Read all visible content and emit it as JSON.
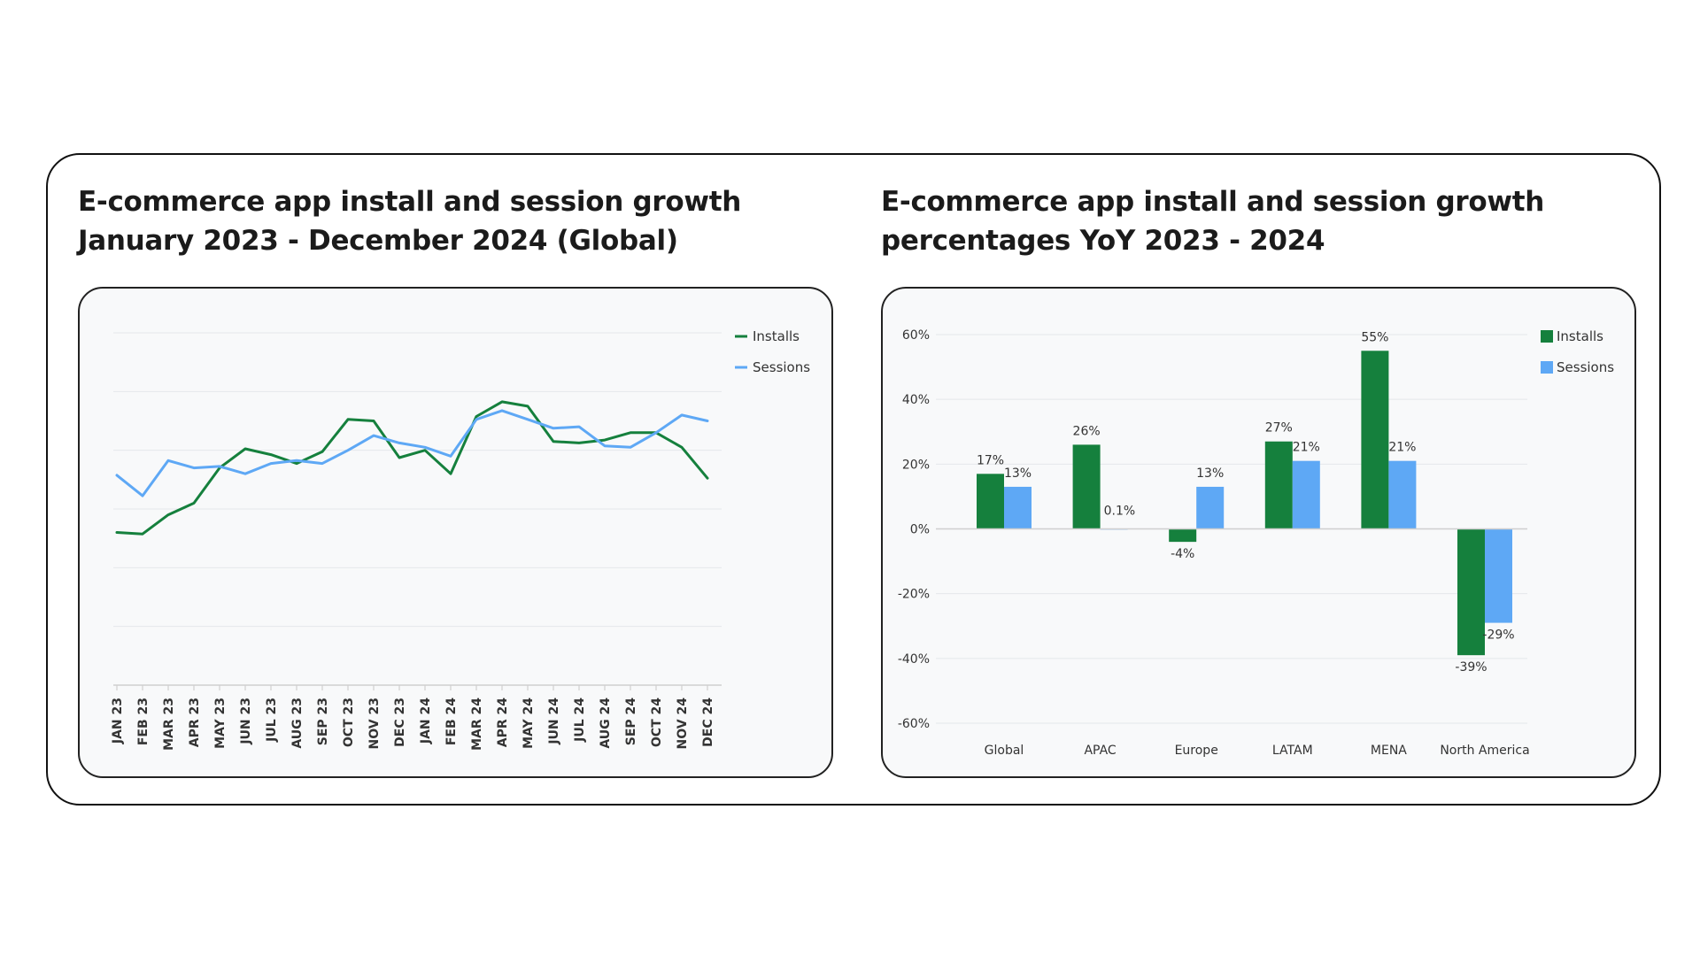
{
  "titles": {
    "left_line1": "E-commerce app install and session growth",
    "left_line2": "January 2023 - December 2024 (Global)",
    "right_line1": "E-commerce app install and session growth",
    "right_line2": "percentages YoY 2023 - 2024"
  },
  "colors": {
    "installs": "#15803d",
    "sessions": "#5ea8f5",
    "grid": "#e5e7eb",
    "axis": "#cfcfcf"
  },
  "chart_data": [
    {
      "type": "line",
      "title": "E-commerce app install and session growth January 2023 - December 2024 (Global)",
      "categories": [
        "JAN 23",
        "FEB 23",
        "MAR 23",
        "APR 23",
        "MAY 23",
        "JUN 23",
        "JUL 23",
        "AUG 23",
        "SEP 23",
        "OCT 23",
        "NOV 23",
        "DEC 23",
        "JAN 24",
        "FEB 24",
        "MAR 24",
        "APR 24",
        "MAY 24",
        "JUN 24",
        "JUL 24",
        "AUG 24",
        "SEP 24",
        "OCT 24",
        "NOV 24",
        "DEC 24"
      ],
      "series": [
        {
          "name": "Installs",
          "values": [
            24,
            23,
            36,
            44,
            68,
            81,
            77,
            71,
            79,
            101,
            100,
            75,
            80,
            64,
            103,
            113,
            110,
            86,
            85,
            87,
            92,
            92,
            82,
            61
          ]
        },
        {
          "name": "Sessions",
          "values": [
            63,
            49,
            73,
            68,
            69,
            64,
            71,
            73,
            71,
            80,
            90,
            85,
            82,
            76,
            101,
            107,
            101,
            95,
            96,
            83,
            82,
            92,
            104,
            100
          ]
        }
      ],
      "ylim": [
        -80,
        160
      ],
      "y_ticks_visible": false,
      "grid": true,
      "legend": "top-right",
      "legend_labels": [
        "Installs",
        "Sessions"
      ]
    },
    {
      "type": "bar",
      "title": "E-commerce app install and session growth percentages YoY 2023 - 2024",
      "categories": [
        "Global",
        "APAC",
        "Europe",
        "LATAM",
        "MENA",
        "North America"
      ],
      "series": [
        {
          "name": "Installs",
          "values": [
            17,
            26,
            -4,
            27,
            55,
            -39
          ],
          "labels": [
            "17%",
            "26%",
            "-4%",
            "27%",
            "55%",
            "-39%"
          ]
        },
        {
          "name": "Sessions",
          "values": [
            13,
            0.1,
            13,
            21,
            21,
            -29
          ],
          "labels": [
            "13%",
            "0.1%",
            "13%",
            "21%",
            "21%",
            "-29%"
          ]
        }
      ],
      "ylim": [
        -60,
        60
      ],
      "y_ticks": [
        60,
        40,
        20,
        0,
        -20,
        -40,
        -60
      ],
      "y_tick_labels": [
        "60%",
        "40%",
        "20%",
        "0%",
        "-20%",
        "-40%",
        "-60%"
      ],
      "grid": true,
      "legend": "top-right",
      "legend_labels": [
        "Installs",
        "Sessions"
      ]
    }
  ]
}
